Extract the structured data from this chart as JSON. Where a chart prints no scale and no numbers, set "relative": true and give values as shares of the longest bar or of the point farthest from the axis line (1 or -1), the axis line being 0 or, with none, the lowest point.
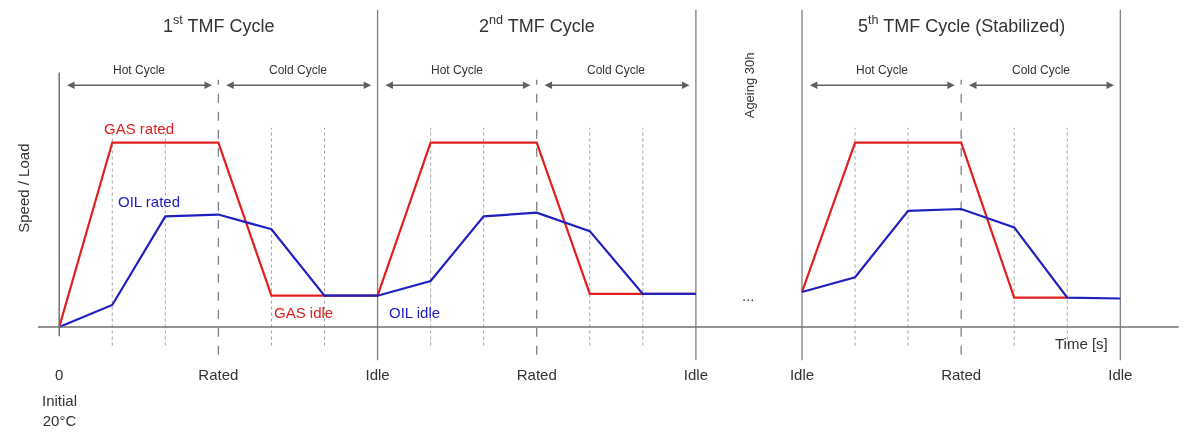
{
  "chart_data": {
    "type": "line",
    "relative": true,
    "xlabel": "Time [s]",
    "ylabel": "Speed / Load",
    "grid": "x",
    "categories": [
      "0",
      null,
      null,
      "Rated",
      null,
      null,
      "Idle",
      null,
      null,
      "Rated",
      null,
      null,
      "Idle",
      null,
      "Idle",
      null,
      null,
      "Rated",
      null,
      null,
      "Idle"
    ],
    "series": [
      {
        "color": "#e02020",
        "values": [
          0,
          1,
          1,
          1,
          0.17,
          0.17,
          0.17,
          1,
          1,
          1,
          0.18,
          0.18,
          0.18,
          null,
          0.19,
          1,
          1,
          1,
          0.16,
          0.16,
          null
        ]
      },
      {
        "color": "#2020c0",
        "values": [
          0,
          0.12,
          0.6,
          0.61,
          0.53,
          0.17,
          0.17,
          0.25,
          0.6,
          0.62,
          0.52,
          0.18,
          0.18,
          null,
          0.19,
          0.27,
          0.63,
          0.64,
          0.54,
          0.16,
          0.155
        ]
      }
    ],
    "annotations": [
      "1$^{st}$ TMF Cycle",
      "2$^{nd}$ TMF Cycle",
      "5$^{th}$ TMF Cycle (Stabilized)",
      "Hot Cycle",
      "Cold Cycle",
      "Hot Cycle",
      "Cold Cycle",
      "Ageing 30h",
      "Hot Cycle",
      "Cold Cycle",
      "GAS rated",
      "OIL rated",
      "GAS idle",
      "OIL idle",
      "...",
      "Initial\n20°C"
    ]
  }
}
